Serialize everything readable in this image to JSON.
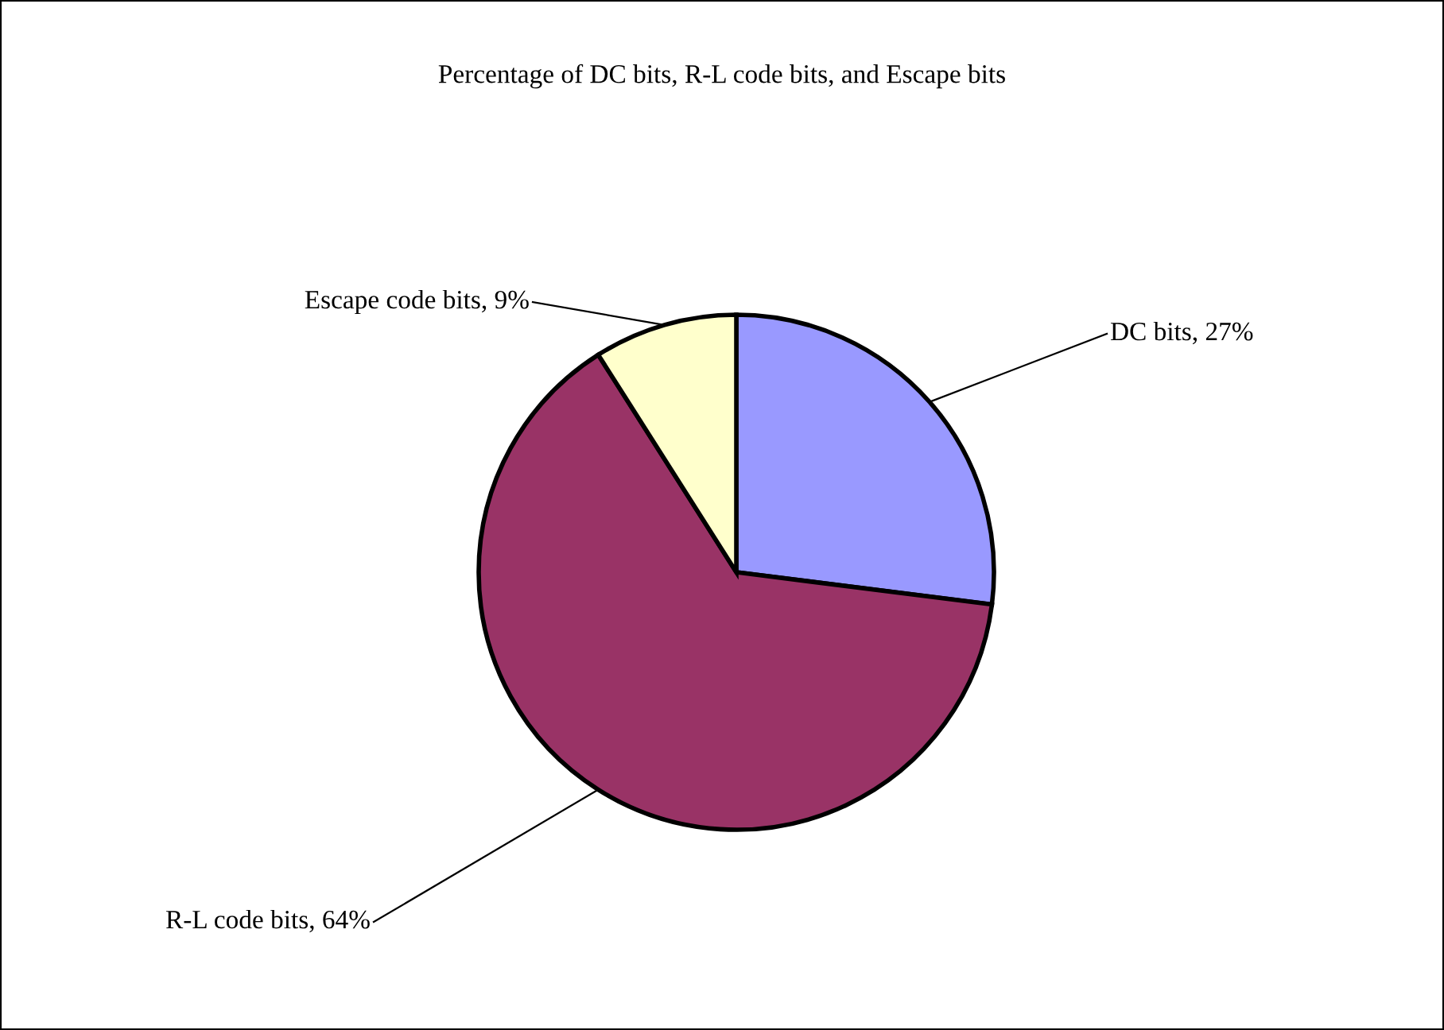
{
  "chart_data": {
    "type": "pie",
    "title": "Percentage of DC bits, R-L code bits, and Escape bits",
    "categories": [
      "DC bits",
      "R-L code bits",
      "Escape code bits"
    ],
    "values": [
      27,
      64,
      9
    ],
    "value_labels": [
      "27%",
      "64%",
      "9%"
    ],
    "colors": [
      "#9999ff",
      "#993366",
      "#ffffcc"
    ],
    "legend": false
  }
}
